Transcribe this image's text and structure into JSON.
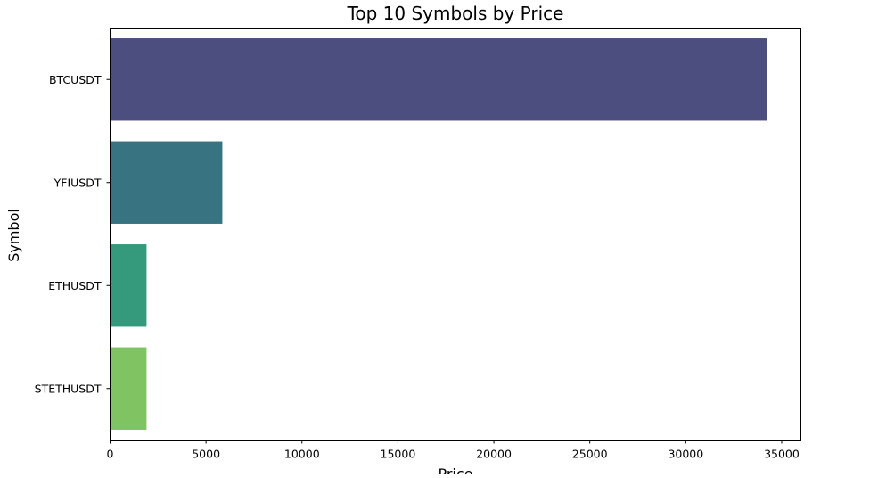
{
  "chart_data": {
    "type": "bar",
    "orientation": "horizontal",
    "title": "Top 10 Symbols by Price",
    "xlabel": "Price",
    "ylabel": "Symbol",
    "categories": [
      "BTCUSDT",
      "YFIUSDT",
      "ETHUSDT",
      "STETHUSDT"
    ],
    "values": [
      34250,
      5850,
      1900,
      1900
    ],
    "colors": [
      "#4b4e7e",
      "#377381",
      "#35997c",
      "#80c362"
    ],
    "xlim": [
      0,
      36000
    ],
    "xticks": [
      0,
      5000,
      10000,
      15000,
      20000,
      25000,
      30000,
      35000
    ],
    "grid": false,
    "legend": "none"
  }
}
